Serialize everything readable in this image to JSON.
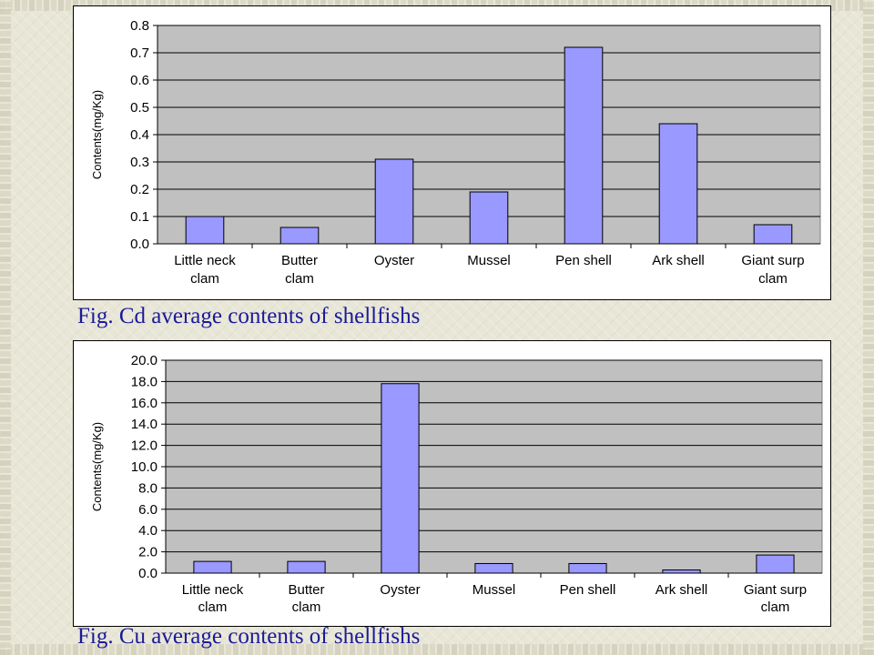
{
  "captions": {
    "cd": "Fig. Cd average contents of shellfishs",
    "cu": "Fig. Cu average contents of shellfishs"
  },
  "colors": {
    "bar_fill": "#9999ff",
    "bar_stroke": "#000000",
    "plot_background": "#c0c0c0",
    "caption_text": "#1a1a99"
  },
  "chart_data": [
    {
      "id": "cd",
      "type": "bar",
      "categories": [
        [
          "Little neck",
          "clam"
        ],
        [
          "Butter",
          "clam"
        ],
        [
          "Oyster"
        ],
        [
          "Mussel"
        ],
        [
          "Pen shell"
        ],
        [
          "Ark shell"
        ],
        [
          "Giant surp",
          "clam"
        ]
      ],
      "values": [
        0.1,
        0.06,
        0.31,
        0.19,
        0.72,
        0.44,
        0.07
      ],
      "title": "",
      "xlabel": "",
      "ylabel": "Contents(mg/Kg)",
      "ylim": [
        0,
        0.8
      ],
      "yticks": [
        "0.0",
        "0.1",
        "0.2",
        "0.3",
        "0.4",
        "0.5",
        "0.6",
        "0.7",
        "0.8"
      ],
      "grid": true,
      "legend": "none"
    },
    {
      "id": "cu",
      "type": "bar",
      "categories": [
        [
          "Little neck",
          "clam"
        ],
        [
          "Butter",
          "clam"
        ],
        [
          "Oyster"
        ],
        [
          "Mussel"
        ],
        [
          "Pen shell"
        ],
        [
          "Ark shell"
        ],
        [
          "Giant surp",
          "clam"
        ]
      ],
      "values": [
        1.1,
        1.1,
        17.8,
        0.9,
        0.9,
        0.3,
        1.7
      ],
      "title": "",
      "xlabel": "",
      "ylabel": "Contents(mg/Kg)",
      "ylim": [
        0,
        20
      ],
      "yticks": [
        "0.0",
        "2.0",
        "4.0",
        "6.0",
        "8.0",
        "10.0",
        "12.0",
        "14.0",
        "16.0",
        "18.0",
        "20.0"
      ],
      "grid": true,
      "legend": "none"
    }
  ]
}
